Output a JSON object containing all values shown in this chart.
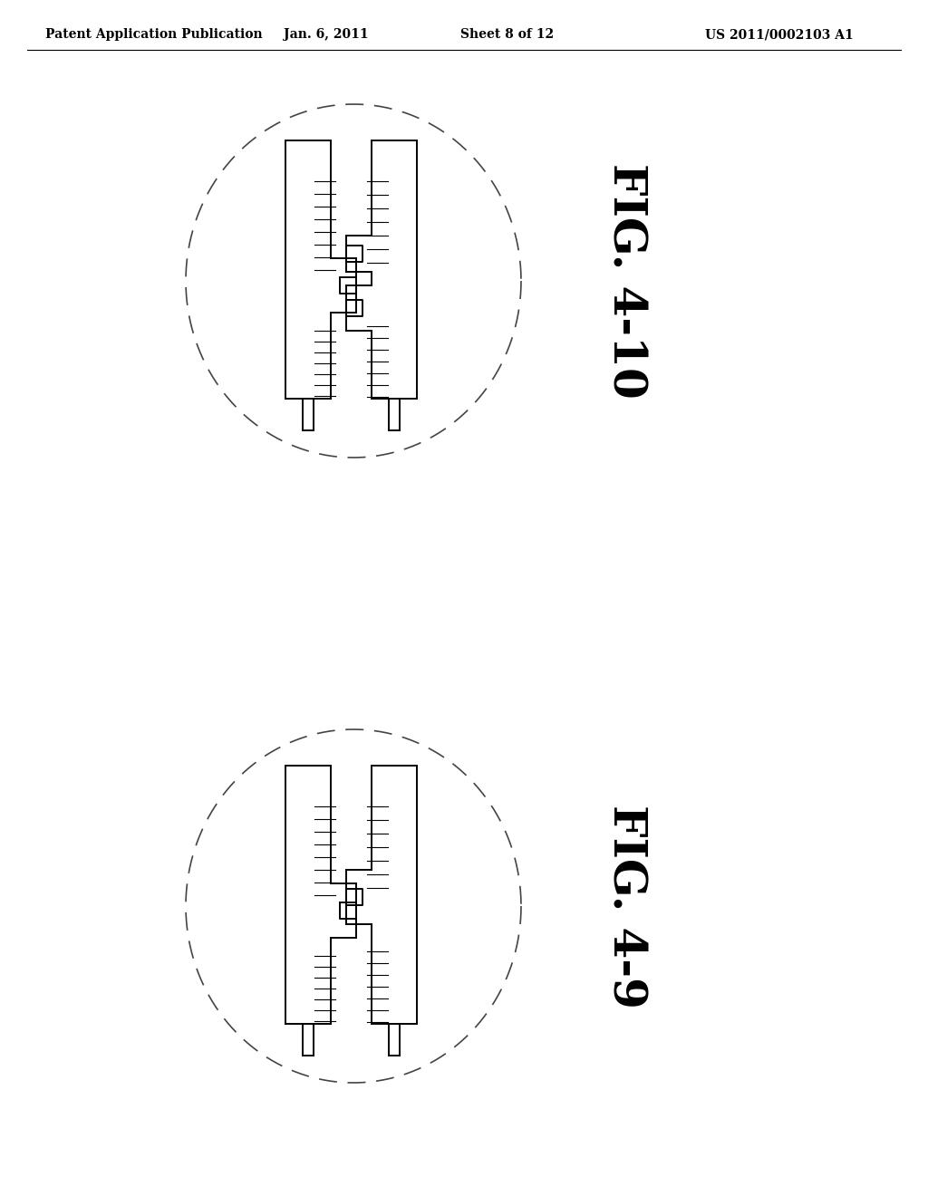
{
  "title_header": "Patent Application Publication",
  "date_header": "Jan. 6, 2011",
  "sheet_header": "Sheet 8 of 12",
  "patent_header": "US 2011/0002103 A1",
  "fig_top_label": "FIG. 4-10",
  "fig_bottom_label": "FIG. 4-9",
  "bg_color": "#ffffff",
  "line_color": "#000000",
  "header_font_size": 10,
  "fig_label_font_size": 36
}
